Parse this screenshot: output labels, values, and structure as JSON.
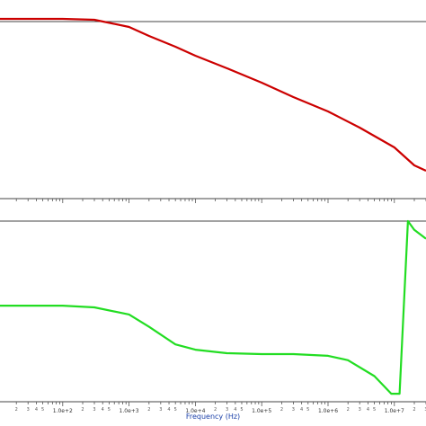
{
  "chart_data": [
    {
      "type": "line",
      "panel": "top",
      "xscale": "log",
      "xlim": [
        10,
        30000000
      ],
      "ylim": [
        0,
        1
      ],
      "grid": false,
      "color": "#cc0000",
      "series": [
        {
          "x": [
            10,
            100,
            300,
            1000,
            2000,
            5000,
            10000,
            30000,
            100000,
            300000,
            1000000,
            3000000,
            10000000,
            20000000,
            30000000
          ],
          "y": [
            0.975,
            0.975,
            0.97,
            0.93,
            0.88,
            0.82,
            0.77,
            0.7,
            0.62,
            0.54,
            0.46,
            0.37,
            0.26,
            0.16,
            0.13
          ]
        }
      ]
    },
    {
      "type": "line",
      "panel": "bottom",
      "xscale": "log",
      "xlim": [
        10,
        30000000
      ],
      "ylim": [
        0,
        1
      ],
      "grid": false,
      "color": "#22dd22",
      "xlabel": "Frequency (Hz)",
      "x_tick_labels": [
        "1.0e+2",
        "1.0e+3",
        "1.0e+4",
        "1.0e+5",
        "1.0e+6",
        "1.0e+7"
      ],
      "x_tick_values": [
        100,
        1000,
        10000,
        100000,
        1000000,
        10000000
      ],
      "minor_tick_labels": [
        "2",
        "3",
        "4",
        "5"
      ],
      "series": [
        {
          "x": [
            10,
            100,
            300,
            1000,
            2000,
            5000,
            10000,
            30000,
            100000,
            300000,
            1000000,
            2000000,
            5000000,
            9000000,
            12000000,
            16000000,
            20000000,
            30000000
          ],
          "y": [
            0.52,
            0.52,
            0.51,
            0.47,
            0.4,
            0.3,
            0.27,
            0.25,
            0.245,
            0.245,
            0.235,
            0.21,
            0.12,
            0.02,
            0.02,
            1.0,
            0.95,
            0.9
          ]
        }
      ]
    }
  ]
}
